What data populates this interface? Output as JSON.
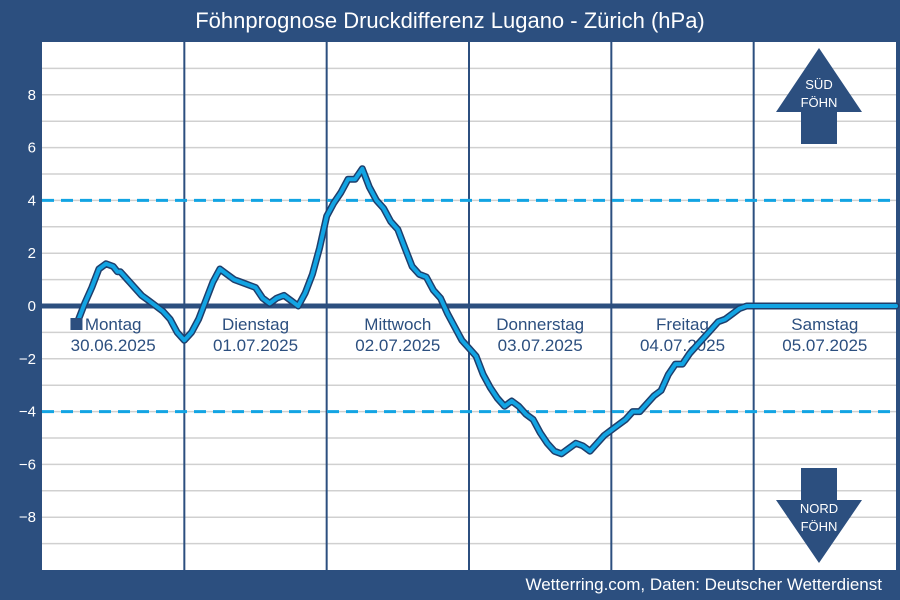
{
  "title": "Föhnprognose Druckdifferenz Lugano - Zürich (hPa)",
  "credit": "Wetterring.com, Daten: Deutscher Wetterdienst",
  "colors": {
    "background": "#2c4f7f",
    "plot_area": "#ffffff",
    "grid": "#d0d0d0",
    "zero_line": "#2c4f7f",
    "threshold": "#12a4e3",
    "series_line": "#12a4e3",
    "series_outline": "#1f3e6b",
    "day_separator": "#2c4f7f"
  },
  "indicators": {
    "south": {
      "icon": "arrow-up-icon",
      "line1": "SÜD",
      "line2": "FÖHN"
    },
    "north": {
      "icon": "arrow-down-icon",
      "line1": "NORD",
      "line2": "FÖHN"
    }
  },
  "chart_data": {
    "type": "line",
    "title": "Föhnprognose Druckdifferenz Lugano - Zürich (hPa)",
    "xlabel": "",
    "ylabel": "",
    "xlim": [
      0,
      6
    ],
    "ylim": [
      -10,
      10
    ],
    "y_ticks": [
      -8,
      -6,
      -4,
      -2,
      0,
      2,
      4,
      6,
      8
    ],
    "grid": true,
    "thresholds": [
      4,
      -4
    ],
    "days": [
      {
        "name": "Montag",
        "date": "30.06.2025"
      },
      {
        "name": "Dienstag",
        "date": "01.07.2025"
      },
      {
        "name": "Mittwoch",
        "date": "02.07.2025"
      },
      {
        "name": "Donnerstag",
        "date": "03.07.2025"
      },
      {
        "name": "Freitag",
        "date": "04.07.2025"
      },
      {
        "name": "Samstag",
        "date": "05.07.2025"
      }
    ],
    "series": [
      {
        "x": [
          0.25,
          0.3,
          0.35,
          0.4,
          0.45,
          0.5,
          0.53,
          0.55,
          0.6,
          0.65,
          0.7,
          0.75,
          0.8,
          0.85,
          0.9,
          0.95,
          1.0,
          1.05,
          1.1,
          1.15,
          1.2,
          1.25,
          1.3,
          1.35,
          1.4,
          1.45,
          1.5,
          1.55,
          1.6,
          1.65,
          1.7,
          1.75,
          1.8,
          1.85,
          1.9,
          1.95,
          2.0,
          2.05,
          2.1,
          2.15,
          2.2,
          2.25,
          2.3,
          2.35,
          2.4,
          2.45,
          2.5,
          2.55,
          2.6,
          2.65,
          2.7,
          2.75,
          2.8,
          2.85,
          2.9,
          2.95,
          3.0,
          3.05,
          3.1,
          3.15,
          3.2,
          3.25,
          3.3,
          3.35,
          3.4,
          3.45,
          3.5,
          3.55,
          3.6,
          3.65,
          3.7,
          3.75,
          3.8,
          3.85,
          3.9,
          3.95,
          4.0,
          4.05,
          4.1,
          4.15,
          4.2,
          4.25,
          4.3,
          4.35,
          4.4,
          4.45,
          4.5,
          4.55,
          4.6,
          4.65,
          4.7,
          4.75,
          4.8,
          4.85,
          4.9,
          4.95,
          5.0,
          5.05,
          5.1,
          5.15,
          5.2,
          5.25,
          5.3,
          5.35,
          5.4,
          5.45,
          5.5,
          5.55,
          5.6,
          5.65,
          5.7,
          5.75,
          5.8,
          5.85,
          5.9,
          5.95,
          6.0
        ],
        "y": [
          -0.6,
          0.1,
          0.7,
          1.4,
          1.6,
          1.5,
          1.3,
          1.3,
          1.0,
          0.7,
          0.4,
          0.2,
          0.0,
          -0.2,
          -0.5,
          -1.0,
          -1.3,
          -1.0,
          -0.5,
          0.2,
          0.9,
          1.4,
          1.2,
          1.0,
          0.9,
          0.8,
          0.7,
          0.3,
          0.1,
          0.3,
          0.4,
          0.2,
          0.0,
          0.5,
          1.2,
          2.2,
          3.4,
          3.9,
          4.3,
          4.8,
          4.8,
          5.2,
          4.5,
          4.0,
          3.7,
          3.2,
          2.9,
          2.2,
          1.5,
          1.2,
          1.1,
          0.6,
          0.3,
          -0.3,
          -0.8,
          -1.3,
          -1.6,
          -1.9,
          -2.6,
          -3.1,
          -3.5,
          -3.8,
          -3.6,
          -3.8,
          -4.1,
          -4.3,
          -4.8,
          -5.2,
          -5.5,
          -5.6,
          -5.4,
          -5.2,
          -5.3,
          -5.5,
          -5.2,
          -4.9,
          -4.7,
          -4.5,
          -4.3,
          -4.0,
          -4.0,
          -3.7,
          -3.4,
          -3.2,
          -2.6,
          -2.2,
          -2.2,
          -1.8,
          -1.5,
          -1.2,
          -0.9,
          -0.6,
          -0.5,
          -0.3,
          -0.1,
          0.0,
          0.0,
          0.0,
          0.0,
          0.0,
          0.0,
          0.0,
          0.0,
          0.0,
          0.0,
          0.0,
          0.0,
          0.0,
          0.0,
          0.0,
          0.0,
          0.0,
          0.0,
          0.0,
          0.0,
          0.0,
          0.0
        ]
      }
    ]
  }
}
